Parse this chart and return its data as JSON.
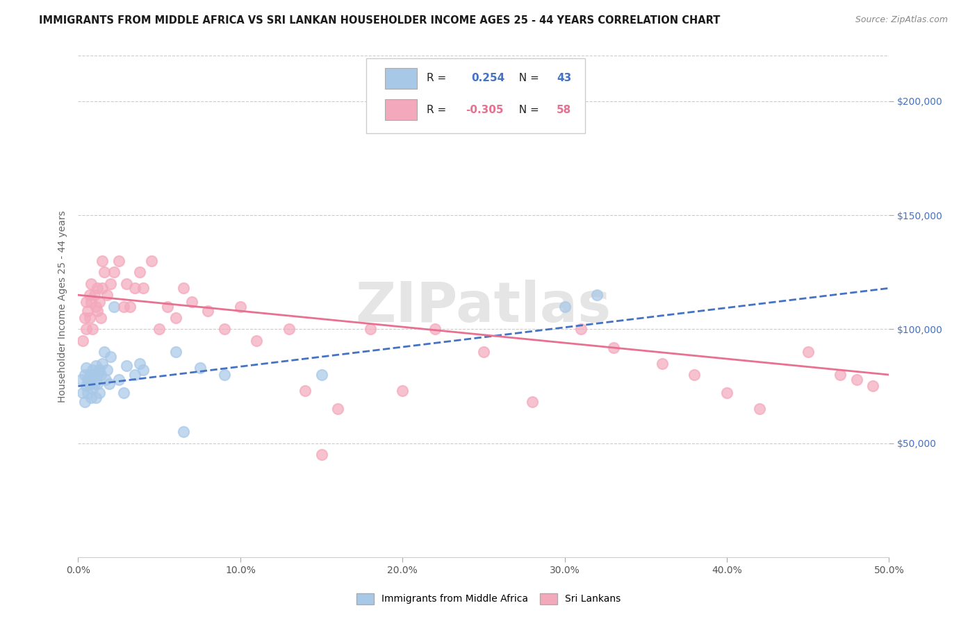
{
  "title": "IMMIGRANTS FROM MIDDLE AFRICA VS SRI LANKAN HOUSEHOLDER INCOME AGES 25 - 44 YEARS CORRELATION CHART",
  "source": "Source: ZipAtlas.com",
  "ylabel": "Householder Income Ages 25 - 44 years",
  "xlabel_ticks": [
    "0.0%",
    "10.0%",
    "20.0%",
    "30.0%",
    "40.0%",
    "50.0%"
  ],
  "xlabel_vals": [
    0.0,
    0.1,
    0.2,
    0.3,
    0.4,
    0.5
  ],
  "ytick_labels": [
    "$50,000",
    "$100,000",
    "$150,000",
    "$200,000"
  ],
  "ytick_vals": [
    50000,
    100000,
    150000,
    200000
  ],
  "ylim": [
    0,
    220000
  ],
  "xlim": [
    0.0,
    0.5
  ],
  "blue_R": 0.254,
  "blue_N": 43,
  "pink_R": -0.305,
  "pink_N": 58,
  "legend_label_blue": "Immigrants from Middle Africa",
  "legend_label_pink": "Sri Lankans",
  "blue_color": "#A8C8E8",
  "pink_color": "#F4A8BC",
  "blue_line_color": "#4472C4",
  "pink_line_color": "#E87090",
  "watermark": "ZIPatlas",
  "blue_line_y0": 75000,
  "blue_line_y1": 118000,
  "pink_line_y0": 115000,
  "pink_line_y1": 80000,
  "blue_points_x": [
    0.002,
    0.003,
    0.004,
    0.004,
    0.005,
    0.005,
    0.006,
    0.006,
    0.007,
    0.007,
    0.008,
    0.008,
    0.009,
    0.009,
    0.01,
    0.01,
    0.011,
    0.011,
    0.012,
    0.012,
    0.013,
    0.013,
    0.014,
    0.015,
    0.016,
    0.017,
    0.018,
    0.019,
    0.02,
    0.022,
    0.025,
    0.028,
    0.03,
    0.035,
    0.038,
    0.04,
    0.06,
    0.065,
    0.075,
    0.09,
    0.15,
    0.3,
    0.32
  ],
  "blue_points_y": [
    78000,
    72000,
    80000,
    68000,
    75000,
    83000,
    78000,
    72000,
    80000,
    76000,
    78000,
    70000,
    82000,
    74000,
    80000,
    76000,
    84000,
    70000,
    80000,
    76000,
    82000,
    72000,
    80000,
    85000,
    90000,
    78000,
    82000,
    76000,
    88000,
    110000,
    78000,
    72000,
    84000,
    80000,
    85000,
    82000,
    90000,
    55000,
    83000,
    80000,
    80000,
    110000,
    115000
  ],
  "pink_points_x": [
    0.003,
    0.004,
    0.005,
    0.005,
    0.006,
    0.007,
    0.007,
    0.008,
    0.008,
    0.009,
    0.01,
    0.011,
    0.012,
    0.012,
    0.013,
    0.014,
    0.015,
    0.015,
    0.016,
    0.018,
    0.02,
    0.022,
    0.025,
    0.028,
    0.03,
    0.032,
    0.035,
    0.038,
    0.04,
    0.045,
    0.05,
    0.055,
    0.06,
    0.065,
    0.07,
    0.08,
    0.09,
    0.1,
    0.11,
    0.13,
    0.14,
    0.15,
    0.16,
    0.18,
    0.2,
    0.22,
    0.25,
    0.28,
    0.31,
    0.33,
    0.36,
    0.38,
    0.4,
    0.42,
    0.45,
    0.47,
    0.48,
    0.49
  ],
  "pink_points_y": [
    95000,
    105000,
    112000,
    100000,
    108000,
    115000,
    105000,
    112000,
    120000,
    100000,
    115000,
    110000,
    108000,
    118000,
    112000,
    105000,
    130000,
    118000,
    125000,
    115000,
    120000,
    125000,
    130000,
    110000,
    120000,
    110000,
    118000,
    125000,
    118000,
    130000,
    100000,
    110000,
    105000,
    118000,
    112000,
    108000,
    100000,
    110000,
    95000,
    100000,
    73000,
    45000,
    65000,
    100000,
    73000,
    100000,
    90000,
    68000,
    100000,
    92000,
    85000,
    80000,
    72000,
    65000,
    90000,
    80000,
    78000,
    75000
  ]
}
